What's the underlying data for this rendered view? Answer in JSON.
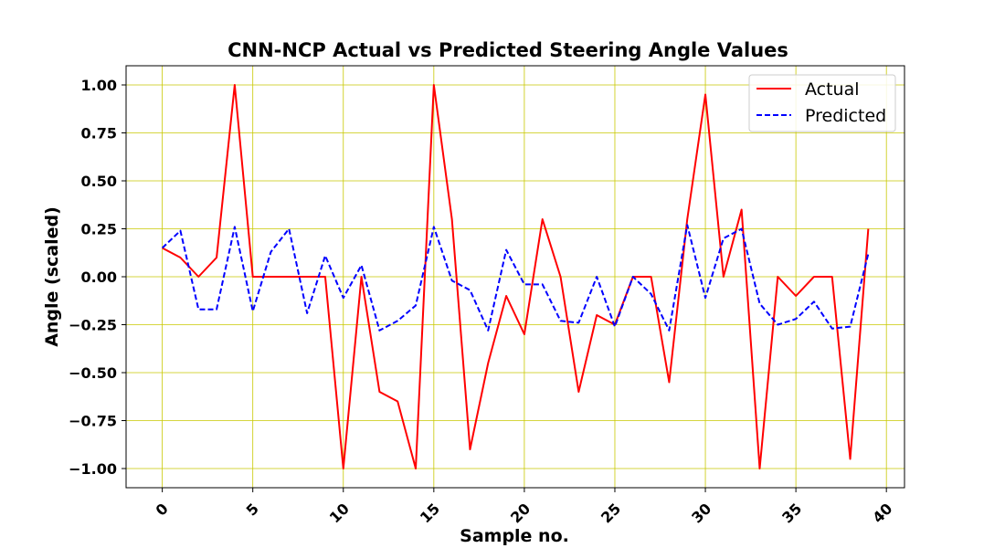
{
  "chart_data": {
    "type": "line",
    "title": "CNN-NCP Actual vs Predicted Steering Angle Values",
    "xlabel": "Sample no.",
    "ylabel": "Angle (scaled)",
    "xlim": [
      -2,
      41
    ],
    "ylim": [
      -1.1,
      1.1
    ],
    "x_ticks": [
      0,
      5,
      10,
      15,
      20,
      25,
      30,
      35,
      40
    ],
    "x_tick_labels": [
      "0",
      "5",
      "10",
      "15",
      "20",
      "25",
      "30",
      "35",
      "40"
    ],
    "y_ticks": [
      -1.0,
      -0.75,
      -0.5,
      -0.25,
      0.0,
      0.25,
      0.5,
      0.75,
      1.0
    ],
    "y_tick_labels": [
      "−1.00",
      "−0.75",
      "−0.50",
      "−0.25",
      "0.00",
      "0.25",
      "0.50",
      "0.75",
      "1.00"
    ],
    "grid": true,
    "legend_position": "top-right",
    "x": [
      0,
      1,
      2,
      3,
      4,
      5,
      6,
      7,
      8,
      9,
      10,
      11,
      12,
      13,
      14,
      15,
      16,
      17,
      18,
      19,
      20,
      21,
      22,
      23,
      24,
      25,
      26,
      27,
      28,
      29,
      30,
      31,
      32,
      33,
      34,
      35,
      36,
      37,
      38,
      39
    ],
    "series": [
      {
        "name": "Actual",
        "color": "#ff0000",
        "style": "solid",
        "values": [
          0.15,
          0.1,
          0.0,
          0.1,
          1.0,
          0.0,
          0.0,
          0.0,
          0.0,
          0.0,
          -1.0,
          0.0,
          -0.6,
          -0.65,
          -1.0,
          1.0,
          0.3,
          -0.9,
          -0.45,
          -0.1,
          -0.3,
          0.3,
          0.0,
          -0.6,
          -0.2,
          -0.25,
          0.0,
          0.0,
          -0.55,
          0.3,
          0.95,
          0.0,
          0.35,
          -1.0,
          0.0,
          -0.1,
          0.0,
          0.0,
          -0.95,
          0.25
        ]
      },
      {
        "name": "Predicted",
        "color": "#0000ff",
        "style": "dashed",
        "values": [
          0.15,
          0.24,
          -0.17,
          -0.17,
          0.26,
          -0.18,
          0.13,
          0.25,
          -0.19,
          0.11,
          -0.11,
          0.06,
          -0.28,
          -0.23,
          -0.15,
          0.26,
          -0.02,
          -0.07,
          -0.28,
          0.14,
          -0.04,
          -0.04,
          -0.23,
          -0.24,
          0.0,
          -0.26,
          0.0,
          -0.09,
          -0.28,
          0.27,
          -0.11,
          0.2,
          0.25,
          -0.14,
          -0.25,
          -0.22,
          -0.13,
          -0.27,
          -0.26,
          0.12
        ]
      }
    ]
  }
}
